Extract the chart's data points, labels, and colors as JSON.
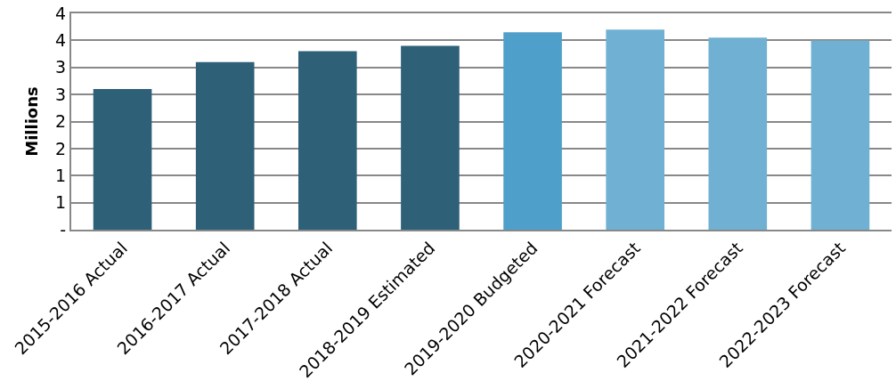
{
  "chart_data": {
    "type": "bar",
    "ylabel": "Millions",
    "categories": [
      "2015-2016 Actual",
      "2016-2017 Actual",
      "2017-2018 Actual",
      "2018-2019 Estimated",
      "2019-2020 Budgeted",
      "2020-2021 Forecast",
      "2021-2022 Forecast",
      "2022-2023 Forecast"
    ],
    "values": [
      2.6,
      3.1,
      3.3,
      3.4,
      3.65,
      3.7,
      3.55,
      3.5
    ],
    "colors": [
      "#2e6078",
      "#2e6078",
      "#2e6078",
      "#2e6078",
      "#4e9fca",
      "#70b0d2",
      "#70b0d2",
      "#70b0d2"
    ],
    "ylim": [
      0,
      4
    ],
    "yticks": [
      {
        "value": 0,
        "label": "-"
      },
      {
        "value": 0.5,
        "label": "1"
      },
      {
        "value": 1,
        "label": "1"
      },
      {
        "value": 1.5,
        "label": "2"
      },
      {
        "value": 2,
        "label": "2"
      },
      {
        "value": 2.5,
        "label": "3"
      },
      {
        "value": 3,
        "label": "3"
      },
      {
        "value": 3.5,
        "label": "4"
      },
      {
        "value": 4,
        "label": "4"
      }
    ],
    "grid": "y"
  }
}
